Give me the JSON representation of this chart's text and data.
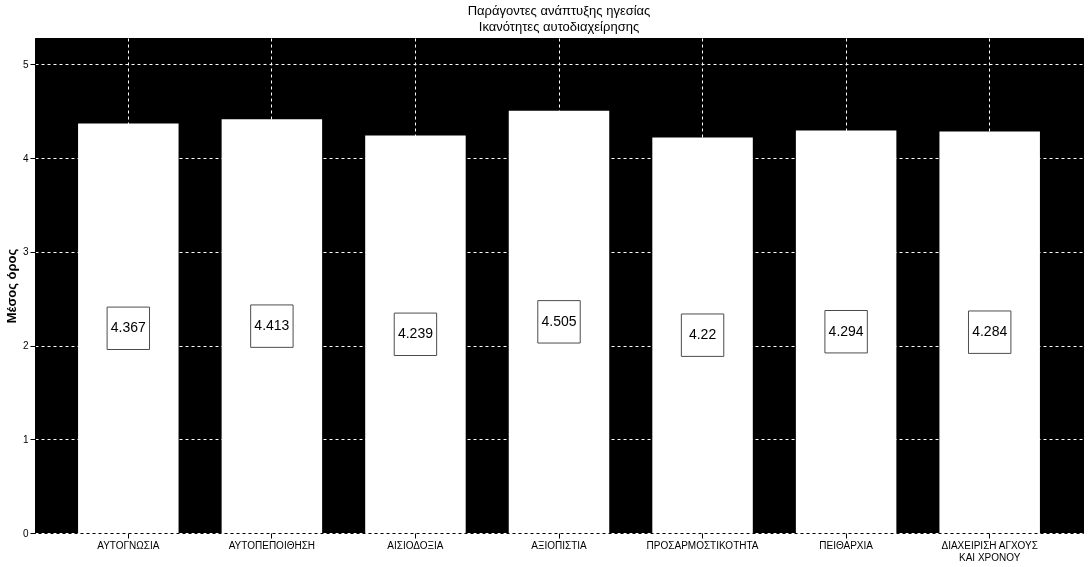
{
  "chart_data": {
    "type": "bar",
    "title": "Παράγοντες ανάπτυξης ηγεσίας",
    "subtitle": "Ικανότητες αυτοδιαχείρησης",
    "ylabel": "Μέσος όρος",
    "categories": [
      "ΑΥΤΟΓΝΩΣΙΑ",
      "ΑΥΤΟΠΕΠΟΙΘΗΣΗ",
      "ΑΙΣΙΟΔΟΞΙΑ",
      "ΑΞΙΟΠΙΣΤΙΑ",
      "ΠΡΟΣΑΡΜΟΣΤΙΚΟΤΗΤΑ",
      "ΠΕΙΘΑΡΧΙΑ",
      "ΔΙΑΧΕΙΡΙΣΗ ΑΓΧΟΥΣ\nΚΑΙ ΧΡΟΝΟΥ"
    ],
    "values": [
      4.367,
      4.413,
      4.239,
      4.505,
      4.22,
      4.294,
      4.284
    ],
    "color": "#ffffff",
    "ylim": [
      0,
      5.28
    ],
    "yticks": [
      0,
      1,
      2,
      3,
      4,
      5
    ],
    "grid": true,
    "data_labels": true
  }
}
